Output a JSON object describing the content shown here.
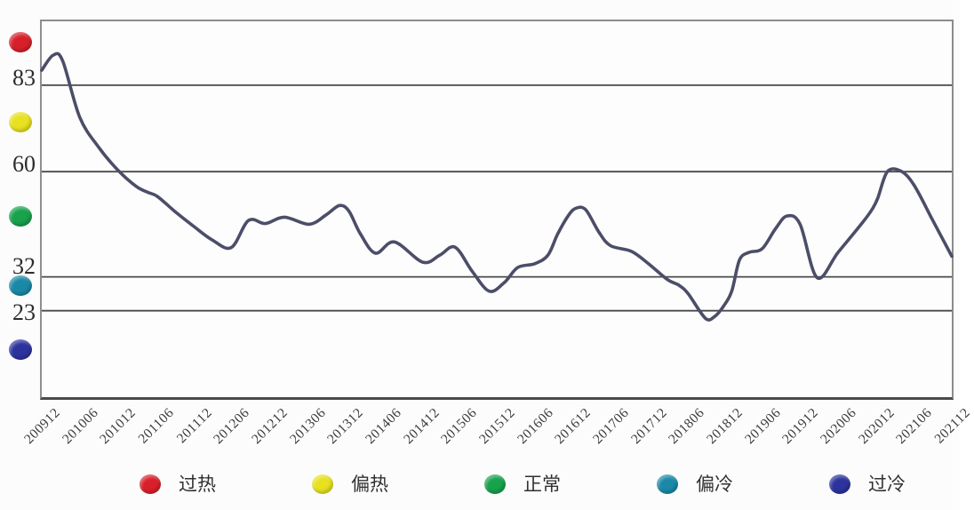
{
  "page": {
    "background": "#fcfcfd"
  },
  "zones": [
    {
      "name": "overheat",
      "label": "过热",
      "color": "#d8202a"
    },
    {
      "name": "warm",
      "label": "偏热",
      "color": "#e7e11f"
    },
    {
      "name": "normal",
      "label": "正常",
      "color": "#17a24b"
    },
    {
      "name": "cool",
      "label": "偏冷",
      "color": "#1a89a7"
    },
    {
      "name": "cold",
      "label": "过冷",
      "color": "#2c339d"
    }
  ],
  "y_axis": {
    "labels": [
      {
        "text": "83",
        "value": 83
      },
      {
        "text": "60",
        "value": 60
      },
      {
        "text": "32",
        "value": 32
      },
      {
        "text": "23",
        "value": 23
      }
    ]
  },
  "chart_data": {
    "type": "line",
    "title": "",
    "xlabel": "",
    "ylabel": "",
    "ylim": [
      0,
      100
    ],
    "grid": "horizontal",
    "legend_position": "bottom",
    "gridline_values": [
      83,
      60,
      32,
      23
    ],
    "line_color": "#4c4e68",
    "gridline_color": "#4a4a4a",
    "x_tick_labels": [
      "200912",
      "201006",
      "201012",
      "201106",
      "201112",
      "201206",
      "201212",
      "201306",
      "201312",
      "201406",
      "201412",
      "201506",
      "201512",
      "201606",
      "201612",
      "201706",
      "201712",
      "201806",
      "201812",
      "201906",
      "201912",
      "202006",
      "202012",
      "202106",
      "202112"
    ],
    "series": [
      {
        "name": "",
        "points": [
          [
            0,
            87
          ],
          [
            0.3,
            91
          ],
          [
            0.55,
            89.5
          ],
          [
            1,
            74.5
          ],
          [
            1.5,
            66.5
          ],
          [
            2,
            60.5
          ],
          [
            2.5,
            56
          ],
          [
            2.8,
            54.5
          ],
          [
            3.05,
            53.4
          ],
          [
            3.5,
            49.5
          ],
          [
            4,
            45.5
          ],
          [
            4.5,
            41.8
          ],
          [
            5,
            39.8
          ],
          [
            5.45,
            47
          ],
          [
            5.9,
            46.2
          ],
          [
            6.4,
            47.9
          ],
          [
            7.05,
            46
          ],
          [
            7.5,
            48.5
          ],
          [
            7.85,
            51
          ],
          [
            8.1,
            49.5
          ],
          [
            8.4,
            43.5
          ],
          [
            8.8,
            38.3
          ],
          [
            9.3,
            41.3
          ],
          [
            10.05,
            35.9
          ],
          [
            10.5,
            37.8
          ],
          [
            10.9,
            39.9
          ],
          [
            11.35,
            33.5
          ],
          [
            11.8,
            28.2
          ],
          [
            12.2,
            30.5
          ],
          [
            12.55,
            34.5
          ],
          [
            13,
            35.5
          ],
          [
            13.35,
            37.8
          ],
          [
            13.6,
            43.3
          ],
          [
            13.9,
            48.5
          ],
          [
            14.1,
            50.3
          ],
          [
            14.35,
            49.8
          ],
          [
            14.7,
            43.8
          ],
          [
            15,
            40.3
          ],
          [
            15.55,
            38.8
          ],
          [
            16,
            35.5
          ],
          [
            16.5,
            31.3
          ],
          [
            16.8,
            29.8
          ],
          [
            17.05,
            27.5
          ],
          [
            17.5,
            21
          ],
          [
            17.75,
            21.5
          ],
          [
            18,
            24.5
          ],
          [
            18.2,
            28.3
          ],
          [
            18.4,
            36.5
          ],
          [
            18.65,
            38.5
          ],
          [
            19,
            39.5
          ],
          [
            19.35,
            44.8
          ],
          [
            19.65,
            48.2
          ],
          [
            20,
            46
          ],
          [
            20.45,
            31.8
          ],
          [
            21,
            38.5
          ],
          [
            21.65,
            46.5
          ],
          [
            21.9,
            50
          ],
          [
            22.05,
            53
          ],
          [
            22.3,
            60
          ],
          [
            22.65,
            60.2
          ],
          [
            23,
            56.5
          ],
          [
            23.5,
            47
          ],
          [
            24,
            37.5
          ]
        ]
      }
    ]
  }
}
